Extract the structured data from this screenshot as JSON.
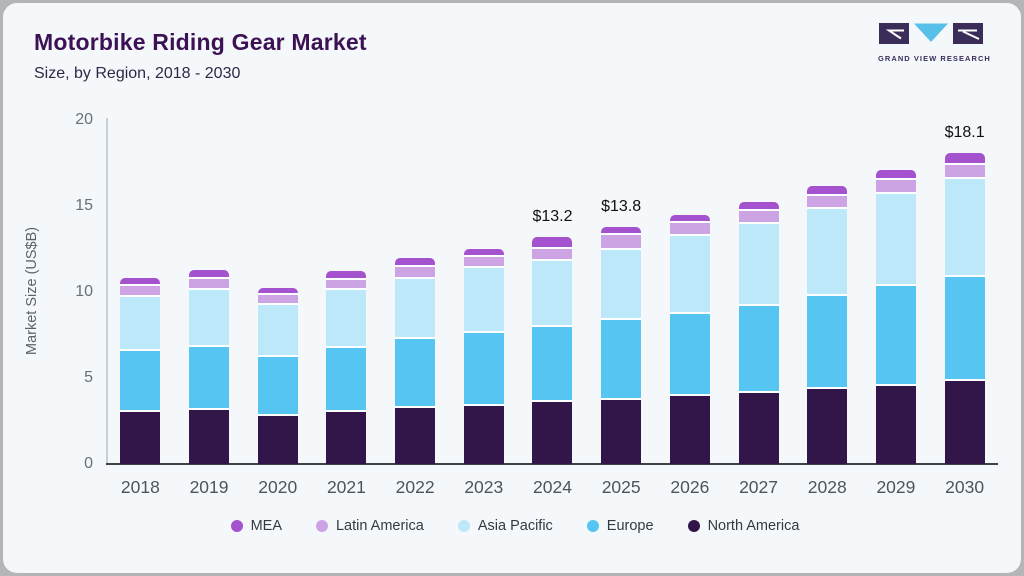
{
  "header": {
    "title": "Motorbike Riding Gear Market",
    "subtitle": "Size, by Region, 2018 - 2030",
    "logo_text": "GRAND VIEW RESEARCH"
  },
  "colors": {
    "card_background": "#f5f8fb",
    "frame": "#b3b6b8",
    "title": "#3c1254",
    "logo_purple": "#3a2d59",
    "logo_blue": "#58bfe8",
    "axis_line": "#c9ced3",
    "baseline": "#3d4248"
  },
  "chart_data": {
    "type": "bar",
    "stacked": true,
    "title": "Motorbike Riding Gear Market",
    "subtitle": "Size, by Region, 2018 - 2030",
    "ylabel": "Market Size (US$B)",
    "ylim": [
      0,
      20
    ],
    "yticks": [
      0,
      5,
      10,
      15,
      20
    ],
    "grid": false,
    "legend_position": "bottom",
    "categories": [
      "2018",
      "2019",
      "2020",
      "2021",
      "2022",
      "2023",
      "2024",
      "2025",
      "2026",
      "2027",
      "2028",
      "2029",
      "2030"
    ],
    "series": [
      {
        "name": "North America",
        "color": "#321549",
        "values": [
          3.0,
          3.15,
          2.8,
          3.05,
          3.25,
          3.4,
          3.6,
          3.75,
          3.95,
          4.1,
          4.35,
          4.55,
          4.8
        ]
      },
      {
        "name": "Europe",
        "color": "#56c5f2",
        "values": [
          3.55,
          3.65,
          3.4,
          3.7,
          4.0,
          4.2,
          4.35,
          4.6,
          4.8,
          5.1,
          5.4,
          5.8,
          6.1
        ]
      },
      {
        "name": "Asia Pacific",
        "color": "#bce8f9",
        "values": [
          3.15,
          3.3,
          3.05,
          3.35,
          3.5,
          3.8,
          3.85,
          4.1,
          4.5,
          4.75,
          5.05,
          5.35,
          5.65
        ]
      },
      {
        "name": "Latin America",
        "color": "#cca4e4",
        "values": [
          0.65,
          0.65,
          0.55,
          0.6,
          0.7,
          0.65,
          0.7,
          0.85,
          0.75,
          0.75,
          0.8,
          0.8,
          0.85
        ]
      },
      {
        "name": "MEA",
        "color": "#a552cf",
        "values": [
          0.45,
          0.55,
          0.45,
          0.5,
          0.55,
          0.45,
          0.7,
          0.5,
          0.5,
          0.55,
          0.55,
          0.6,
          0.7
        ]
      }
    ],
    "legend_order": [
      "MEA",
      "Latin America",
      "Asia Pacific",
      "Europe",
      "North America"
    ],
    "annotations": [
      {
        "category": "2024",
        "label": "$13.2"
      },
      {
        "category": "2025",
        "label": "$13.8"
      },
      {
        "category": "2030",
        "label": "$18.1"
      }
    ]
  }
}
